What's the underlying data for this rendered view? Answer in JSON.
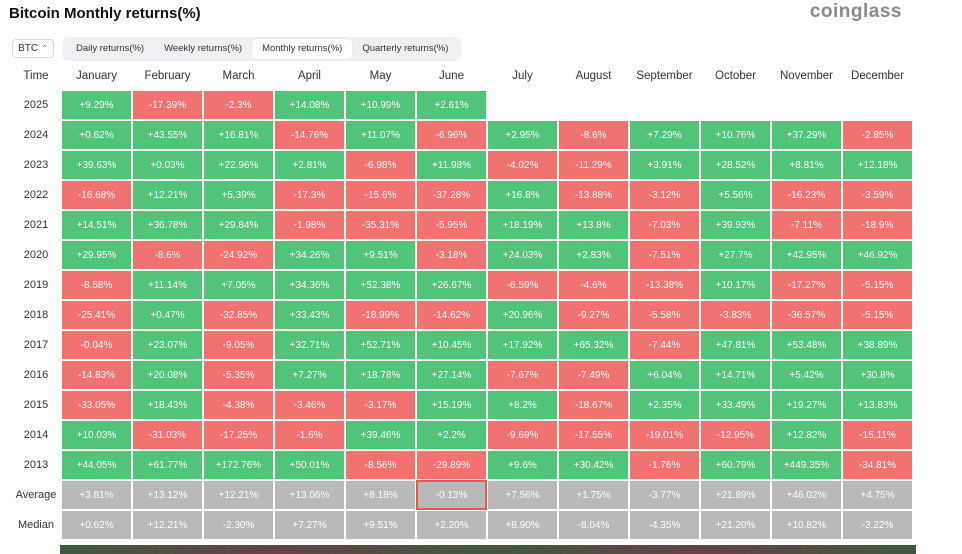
{
  "title": "Bitcoin Monthly returns(%)",
  "brand": "coinglass",
  "coin_select": {
    "value": "BTC"
  },
  "tabs": [
    {
      "label": "Daily returns(%)",
      "active": false
    },
    {
      "label": "Weekly returns(%)",
      "active": false
    },
    {
      "label": "Monthly returns(%)",
      "active": true
    },
    {
      "label": "Quarterly returns(%)",
      "active": false
    }
  ],
  "colors": {
    "positive": "#52c47a",
    "negative": "#f07271",
    "summary": "#b9b9b9",
    "highlight": "#e05a4e"
  },
  "table": {
    "columns": [
      "Time",
      "January",
      "February",
      "March",
      "April",
      "May",
      "June",
      "July",
      "August",
      "September",
      "October",
      "November",
      "December"
    ],
    "rows": [
      {
        "year": "2025",
        "values": [
          "+9.29%",
          "-17.39%",
          "-2.3%",
          "+14.08%",
          "+10.99%",
          "+2.61%",
          "",
          "",
          "",
          "",
          "",
          ""
        ]
      },
      {
        "year": "2024",
        "values": [
          "+0.62%",
          "+43.55%",
          "+16.81%",
          "-14.76%",
          "+11.07%",
          "-6.96%",
          "+2.95%",
          "-8.6%",
          "+7.29%",
          "+10.76%",
          "+37.29%",
          "-2.85%"
        ]
      },
      {
        "year": "2023",
        "values": [
          "+39.63%",
          "+0.03%",
          "+22.96%",
          "+2.81%",
          "-6.98%",
          "+11.98%",
          "-4.02%",
          "-11.29%",
          "+3.91%",
          "+28.52%",
          "+8.81%",
          "+12.18%"
        ]
      },
      {
        "year": "2022",
        "values": [
          "-16.68%",
          "+12.21%",
          "+5.39%",
          "-17.3%",
          "-15.6%",
          "-37.28%",
          "+16.8%",
          "-13.88%",
          "-3.12%",
          "+5.56%",
          "-16.23%",
          "-3.59%"
        ]
      },
      {
        "year": "2021",
        "values": [
          "+14.51%",
          "+36.78%",
          "+29.84%",
          "-1.98%",
          "-35.31%",
          "-5.95%",
          "+18.19%",
          "+13.8%",
          "-7.03%",
          "+39.93%",
          "-7.11%",
          "-18.9%"
        ]
      },
      {
        "year": "2020",
        "values": [
          "+29.95%",
          "-8.6%",
          "-24.92%",
          "+34.26%",
          "+9.51%",
          "-3.18%",
          "+24.03%",
          "+2.83%",
          "-7.51%",
          "+27.7%",
          "+42.95%",
          "+46.92%"
        ]
      },
      {
        "year": "2019",
        "values": [
          "-8.58%",
          "+11.14%",
          "+7.05%",
          "+34.36%",
          "+52.38%",
          "+26.67%",
          "-6.59%",
          "-4.6%",
          "-13.38%",
          "+10.17%",
          "-17.27%",
          "-5.15%"
        ]
      },
      {
        "year": "2018",
        "values": [
          "-25.41%",
          "+0.47%",
          "-32.85%",
          "+33.43%",
          "-18.99%",
          "-14.62%",
          "+20.96%",
          "-9.27%",
          "-5.58%",
          "-3.83%",
          "-36.57%",
          "-5.15%"
        ]
      },
      {
        "year": "2017",
        "values": [
          "-0.04%",
          "+23.07%",
          "-9.05%",
          "+32.71%",
          "+52.71%",
          "+10.45%",
          "+17.92%",
          "+65.32%",
          "-7.44%",
          "+47.81%",
          "+53.48%",
          "+38.89%"
        ]
      },
      {
        "year": "2016",
        "values": [
          "-14.83%",
          "+20.08%",
          "-5.35%",
          "+7.27%",
          "+18.78%",
          "+27.14%",
          "-7.67%",
          "-7.49%",
          "+6.04%",
          "+14.71%",
          "+5.42%",
          "+30.8%"
        ]
      },
      {
        "year": "2015",
        "values": [
          "-33.05%",
          "+18.43%",
          "-4.38%",
          "-3.46%",
          "-3.17%",
          "+15.19%",
          "+8.2%",
          "-18.67%",
          "+2.35%",
          "+33.49%",
          "+19.27%",
          "+13.83%"
        ]
      },
      {
        "year": "2014",
        "values": [
          "+10.03%",
          "-31.03%",
          "-17.25%",
          "-1.6%",
          "+39.46%",
          "+2.2%",
          "-9.69%",
          "-17.55%",
          "-19.01%",
          "-12.95%",
          "+12.82%",
          "-15.11%"
        ]
      },
      {
        "year": "2013",
        "values": [
          "+44.05%",
          "+61.77%",
          "+172.76%",
          "+50.01%",
          "-8.56%",
          "-29.89%",
          "+9.6%",
          "+30.42%",
          "-1.76%",
          "+60.79%",
          "+449.35%",
          "-34.81%"
        ]
      }
    ],
    "summary": [
      {
        "label": "Average",
        "values": [
          "+3.81%",
          "+13.12%",
          "+12.21%",
          "+13.06%",
          "+8.18%",
          "-0.13%",
          "+7.56%",
          "+1.75%",
          "-3.77%",
          "+21.89%",
          "+46.02%",
          "+4.75%"
        ]
      },
      {
        "label": "Median",
        "values": [
          "+0.62%",
          "+12.21%",
          "-2.30%",
          "+7.27%",
          "+9.51%",
          "+2.20%",
          "+8.90%",
          "-8.04%",
          "-4.35%",
          "+21.20%",
          "+10.82%",
          "-3.22%"
        ]
      }
    ],
    "highlighted_cell": {
      "row": "Average",
      "column": "June"
    }
  }
}
